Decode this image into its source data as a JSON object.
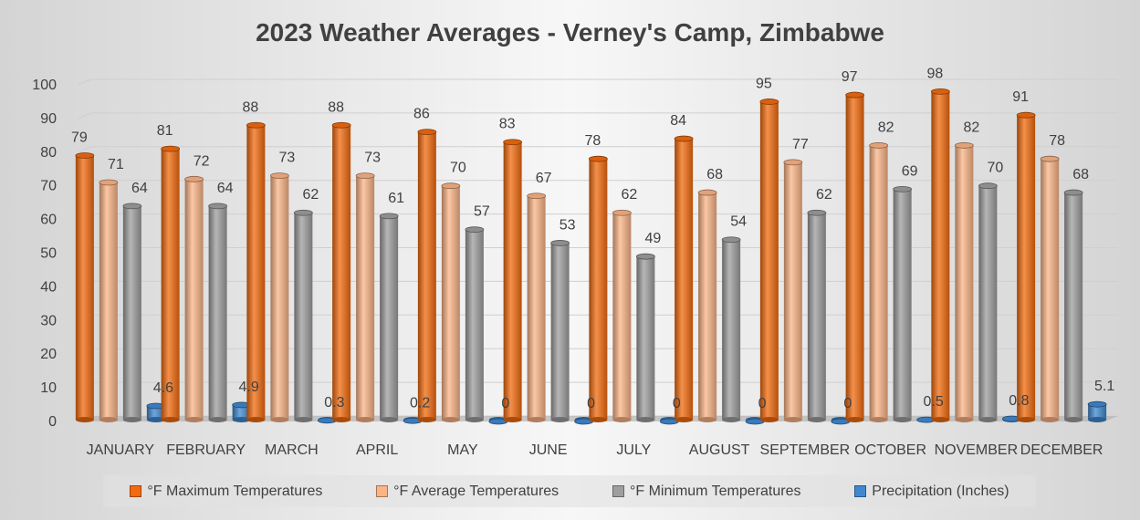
{
  "chart_data": {
    "type": "bar",
    "title": "2023 Weather Averages - Verney's Camp, Zimbabwe",
    "categories": [
      "JANUARY",
      "FEBRUARY",
      "MARCH",
      "APRIL",
      "MAY",
      "JUNE",
      "JULY",
      "AUGUST",
      "SEPTEMBER",
      "OCTOBER",
      "NOVEMBER",
      "DECEMBER"
    ],
    "series": [
      {
        "name": "°F Maximum Temperatures",
        "color": "#f26b0f",
        "values": [
          79,
          81,
          88,
          88,
          86,
          83,
          78,
          84,
          95,
          97,
          98,
          91
        ]
      },
      {
        "name": "°F Average Temperatures",
        "color": "#fbb486",
        "values": [
          71,
          72,
          73,
          73,
          70,
          67,
          62,
          68,
          77,
          82,
          82,
          78
        ]
      },
      {
        "name": "°F Minimum Temperatures",
        "color": "#9e9e9e",
        "values": [
          64,
          64,
          62,
          61,
          57,
          53,
          49,
          54,
          62,
          69,
          70,
          68
        ]
      },
      {
        "name": "Precipitation (Inches)",
        "color": "#3f88d0",
        "values": [
          4.6,
          4.9,
          0.3,
          0.2,
          0,
          0,
          0,
          0,
          0,
          0.5,
          0.8,
          5.1
        ]
      }
    ],
    "ylim": [
      0,
      100
    ],
    "yticks": [
      0,
      10,
      20,
      30,
      40,
      50,
      60,
      70,
      80,
      90,
      100
    ],
    "xlabel": "",
    "ylabel": "",
    "grid": true,
    "legend": "bottom"
  }
}
